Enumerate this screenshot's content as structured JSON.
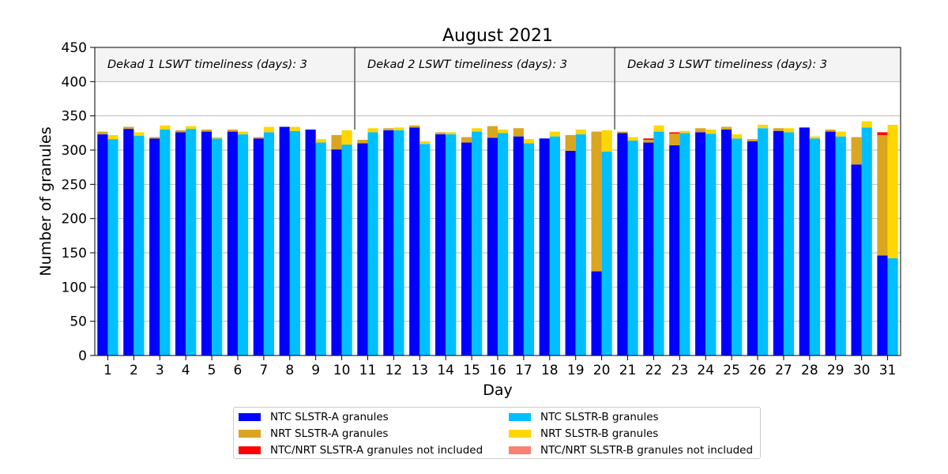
{
  "chart_data": {
    "type": "bar",
    "title": "August 2021",
    "xlabel": "Day",
    "ylabel": "Number of granules",
    "ylim": [
      0,
      450
    ],
    "yticks": [
      0,
      50,
      100,
      150,
      200,
      250,
      300,
      350,
      400,
      450
    ],
    "categories": [
      "1",
      "2",
      "3",
      "4",
      "5",
      "6",
      "7",
      "8",
      "9",
      "10",
      "11",
      "12",
      "13",
      "14",
      "15",
      "16",
      "17",
      "18",
      "19",
      "20",
      "21",
      "22",
      "23",
      "24",
      "25",
      "26",
      "27",
      "28",
      "29",
      "30",
      "31"
    ],
    "grid": "horizontal",
    "legend_position": "bottom",
    "dekads": [
      {
        "label": "Dekad 1 LSWT timeliness (days): 3",
        "start_day": 1,
        "end_day": 10
      },
      {
        "label": "Dekad 2 LSWT timeliness (days): 3",
        "start_day": 11,
        "end_day": 20
      },
      {
        "label": "Dekad 3 LSWT timeliness (days): 3",
        "start_day": 21,
        "end_day": 31
      }
    ],
    "series": [
      {
        "name": "NTC SLSTR-A granules",
        "color": "#0000ff",
        "sensor": "A",
        "values": [
          323,
          331,
          317,
          326,
          327,
          327,
          317,
          334,
          330,
          301,
          310,
          329,
          333,
          323,
          311,
          318,
          320,
          317,
          299,
          123,
          325,
          311,
          307,
          326,
          330,
          313,
          328,
          333,
          327,
          279,
          146
        ]
      },
      {
        "name": "NRT SLSTR-A granules",
        "color": "#daa520",
        "sensor": "A",
        "values": [
          4,
          3,
          2,
          3,
          3,
          3,
          2,
          0,
          0,
          21,
          5,
          3,
          3,
          3,
          8,
          17,
          12,
          0,
          23,
          204,
          2,
          4,
          17,
          6,
          4,
          3,
          4,
          0,
          3,
          40,
          176
        ]
      },
      {
        "name": "NTC/NRT SLSTR-A granules not included",
        "color": "#ff0000",
        "sensor": "A",
        "values": [
          0,
          0,
          0,
          0,
          0,
          0,
          0,
          0,
          0,
          0,
          0,
          0,
          0,
          0,
          0,
          0,
          0,
          0,
          0,
          0,
          0,
          2,
          2,
          0,
          0,
          0,
          0,
          0,
          0,
          0,
          4
        ]
      },
      {
        "name": "NTC SLSTR-B granules",
        "color": "#00bfff",
        "sensor": "B",
        "values": [
          316,
          321,
          330,
          331,
          317,
          323,
          326,
          328,
          311,
          308,
          326,
          329,
          309,
          323,
          327,
          325,
          310,
          320,
          323,
          298,
          314,
          327,
          325,
          324,
          317,
          332,
          326,
          317,
          320,
          333,
          142
        ]
      },
      {
        "name": "NRT SLSTR-B granules",
        "color": "#ffd700",
        "sensor": "B",
        "values": [
          6,
          5,
          6,
          4,
          2,
          4,
          8,
          6,
          5,
          21,
          6,
          4,
          4,
          3,
          5,
          5,
          6,
          7,
          7,
          31,
          5,
          9,
          3,
          6,
          6,
          5,
          6,
          3,
          7,
          9,
          195
        ]
      },
      {
        "name": "NTC/NRT SLSTR-B granules not included",
        "color": "#fa8072",
        "sensor": "B",
        "values": [
          0,
          0,
          0,
          0,
          0,
          0,
          0,
          0,
          0,
          0,
          0,
          0,
          0,
          0,
          0,
          0,
          0,
          0,
          0,
          0,
          0,
          0,
          0,
          0,
          0,
          0,
          0,
          0,
          0,
          0,
          0
        ]
      }
    ]
  }
}
